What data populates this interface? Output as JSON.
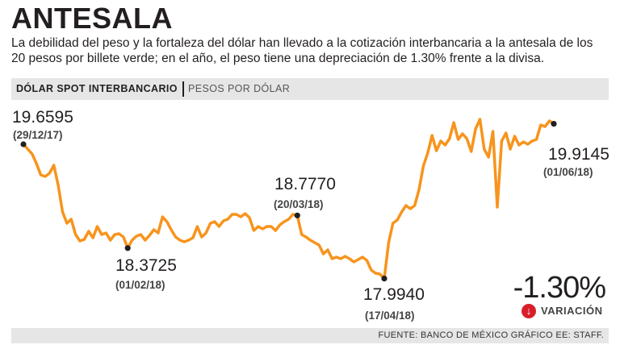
{
  "header": {
    "title": "ANTESALA",
    "subtitle": "La debilidad del peso y la fortaleza del dólar han llevado a la cotización interbancaria a la antesala de los 20 pesos por billete verde; en el año, el peso tiene una depreciación de 1.30% frente a la divisa."
  },
  "band": {
    "label": "DÓLAR SPOT INTERBANCARIO",
    "unit": "PESOS POR DÓLAR"
  },
  "variation": {
    "value": "-1.30%",
    "label": "VARIACIÓN",
    "icon": "down-arrow-icon"
  },
  "footer": {
    "source": "FUENTE: BANCO DE MÉXICO GRÁFICO EE: STAFF."
  },
  "colors": {
    "line": "#f7941d",
    "accent_down": "#d81e2a",
    "band": "#e6e6e6"
  },
  "chart_data": {
    "type": "line",
    "title": "DÓLAR SPOT INTERBANCARIO",
    "ylabel": "PESOS POR DÓLAR",
    "xlabel": "",
    "ylim": [
      17.75,
      20.05
    ],
    "x_range": [
      "2017-12-29",
      "2018-06-01"
    ],
    "annotations": [
      {
        "value": "19.6595",
        "date": "(29/12/17)",
        "x": "2017-12-29",
        "y": 19.6595
      },
      {
        "value": "18.3725",
        "date": "(01/02/18)",
        "x": "2018-02-01",
        "y": 18.3725
      },
      {
        "value": "18.7770",
        "date": "(20/03/18)",
        "x": "2018-03-20",
        "y": 18.777
      },
      {
        "value": "17.9940",
        "date": "(17/04/18)",
        "x": "2018-04-17",
        "y": 17.994
      },
      {
        "value": "19.9145",
        "date": "(01/06/18)",
        "x": "2018-06-01",
        "y": 19.9145
      }
    ],
    "series": [
      {
        "name": "Dólar spot interbancario",
        "values": [
          19.6595,
          19.6,
          19.54,
          19.42,
          19.28,
          19.26,
          19.3,
          19.4,
          19.15,
          18.82,
          18.68,
          18.73,
          18.54,
          18.46,
          18.48,
          18.58,
          18.5,
          18.64,
          18.54,
          18.56,
          18.47,
          18.54,
          18.55,
          18.51,
          18.3725,
          18.47,
          18.52,
          18.54,
          18.47,
          18.53,
          18.6,
          18.56,
          18.76,
          18.7,
          18.6,
          18.51,
          18.47,
          18.45,
          18.47,
          18.5,
          18.64,
          18.51,
          18.56,
          18.68,
          18.7,
          18.64,
          18.71,
          18.73,
          18.79,
          18.79,
          18.76,
          18.8,
          18.75,
          18.59,
          18.64,
          18.61,
          18.64,
          18.64,
          18.59,
          18.66,
          18.7,
          18.73,
          18.79,
          18.777,
          18.54,
          18.51,
          18.47,
          18.44,
          18.41,
          18.3,
          18.35,
          18.24,
          18.26,
          18.24,
          18.27,
          18.24,
          18.2,
          18.23,
          18.26,
          18.22,
          18.1,
          18.06,
          18.05,
          17.994,
          18.44,
          18.68,
          18.72,
          18.82,
          18.9,
          18.86,
          18.9,
          19.1,
          19.39,
          19.55,
          19.77,
          19.58,
          19.7,
          19.65,
          19.73,
          19.93,
          19.72,
          19.79,
          19.73,
          19.57,
          19.85,
          19.97,
          19.6,
          19.5,
          19.82,
          18.88,
          19.7,
          19.8,
          19.6,
          19.76,
          19.65,
          19.69,
          19.66,
          19.7,
          19.72,
          19.9,
          19.88,
          19.95,
          19.9145
        ]
      }
    ]
  }
}
